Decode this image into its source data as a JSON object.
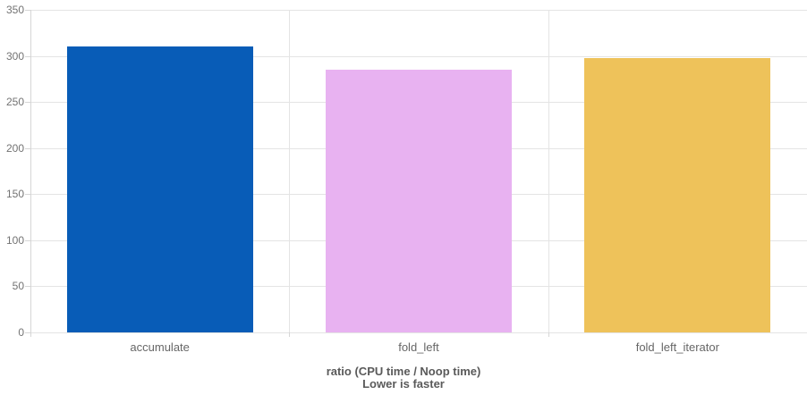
{
  "chart_data": {
    "type": "bar",
    "categories": [
      "accumulate",
      "fold_left",
      "fold_left_iterator"
    ],
    "values": [
      310,
      285,
      298
    ],
    "bar_colors": [
      "#085cb7",
      "#e8b2f1",
      "#eec25a"
    ],
    "xlabel_lines": [
      "ratio (CPU time / Noop time)",
      "Lower is faster"
    ],
    "ylabel": "",
    "ylim": [
      0,
      350
    ],
    "yticks": [
      0,
      50,
      100,
      150,
      200,
      250,
      300,
      350
    ],
    "grid": {
      "horizontal": true,
      "category_separators": true
    },
    "legend": "none",
    "title": ""
  },
  "colors": {
    "background": "#ffffff",
    "gridline": "#e4e4e4",
    "axis_line": "#d6d6d6",
    "tick_label": "#737373",
    "category_label": "#666666",
    "axis_title": "#5a5a5a"
  }
}
